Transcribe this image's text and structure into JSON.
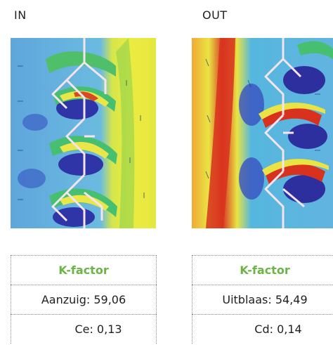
{
  "left": {
    "heading": "IN",
    "table_title": "K-factor",
    "row1": "Aanzuig: 59,06",
    "row2": "Ce: 0,13"
  },
  "right": {
    "heading": "OUT",
    "table_title": "K-factor",
    "row1": "Uitblaas: 54,49",
    "row2": "Cd: 0,14"
  },
  "colors": {
    "accent_green": "#6bb445",
    "field_blue": "#5a9ed8",
    "field_yellow": "#e8e53a",
    "field_red": "#d8321e",
    "field_navy": "#2e2f9e"
  }
}
